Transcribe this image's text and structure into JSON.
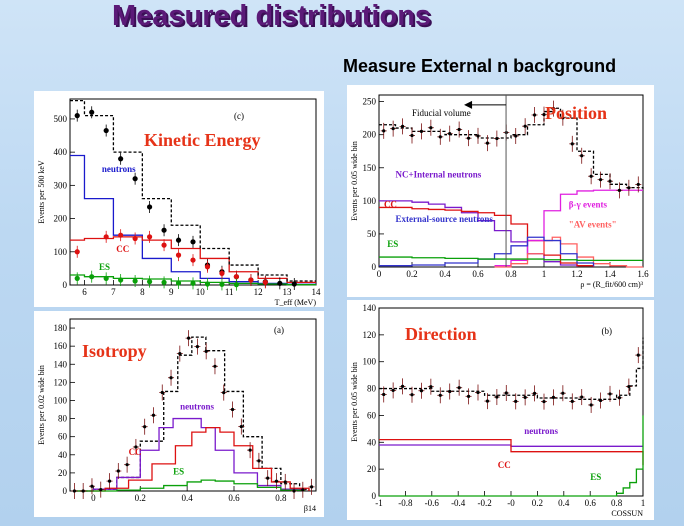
{
  "slide": {
    "title": "Measured distributions",
    "subtitle": "Measure External n background"
  },
  "chart_data": [
    {
      "id": "kinetic",
      "type": "histogram",
      "title": "Kinetic Energy",
      "panel_label": "(c)",
      "xlabel": "T_eff (MeV)",
      "ylabel": "Events per 500 keV",
      "xlim": [
        5.5,
        14
      ],
      "ylim": [
        0,
        560
      ],
      "xticks": [
        6,
        7,
        8,
        9,
        10,
        11,
        12,
        13,
        14
      ],
      "yticks": [
        0,
        100,
        200,
        300,
        400,
        500
      ],
      "colors": {
        "data": "#000000",
        "total": "#000000",
        "neutrons": "#1a1acc",
        "CC": "#dd1111",
        "ES": "#0aa00a",
        "title": "#e63318"
      },
      "series": [
        {
          "name": "neutrons",
          "color": "#1a1acc",
          "bins": [
            5.5,
            6,
            7,
            8,
            9,
            10,
            11,
            12,
            13,
            14
          ],
          "values": [
            390,
            260,
            150,
            80,
            40,
            20,
            10,
            5,
            2
          ]
        },
        {
          "name": "CC",
          "color": "#dd1111",
          "bins": [
            5.5,
            6,
            7,
            8,
            9,
            10,
            11,
            12,
            13,
            14
          ],
          "values": [
            135,
            140,
            145,
            135,
            110,
            80,
            40,
            20,
            8
          ]
        },
        {
          "name": "ES",
          "color": "#0aa00a",
          "bins": [
            5.5,
            6,
            7,
            8,
            9,
            10,
            11,
            12,
            13,
            14
          ],
          "values": [
            30,
            25,
            20,
            18,
            12,
            8,
            5,
            3,
            1
          ]
        },
        {
          "name": "total",
          "color": "#000000",
          "bins": [
            5.5,
            6,
            7,
            8,
            9,
            10,
            11,
            12,
            13,
            14
          ],
          "values": [
            555,
            510,
            400,
            260,
            180,
            110,
            60,
            30,
            12
          ]
        }
      ],
      "data_black": {
        "x": [
          5.75,
          6.25,
          6.75,
          7.25,
          7.75,
          8.25,
          8.75,
          9.25,
          9.75,
          10.25,
          10.75,
          11.25,
          11.75,
          12.25,
          12.75,
          13.25
        ],
        "y": [
          510,
          520,
          465,
          380,
          320,
          235,
          165,
          135,
          130,
          60,
          40,
          25,
          15,
          10,
          5,
          3
        ]
      },
      "data_red": {
        "x": [
          5.75,
          6.75,
          7.25,
          7.75,
          8.25,
          8.75,
          9.25,
          9.75,
          10.25,
          10.75,
          11.25,
          11.75,
          12.25
        ],
        "y": [
          100,
          145,
          150,
          140,
          145,
          120,
          90,
          75,
          55,
          35,
          25,
          15,
          8
        ]
      },
      "data_green": {
        "x": [
          5.75,
          6.25,
          6.75,
          7.25,
          7.75,
          8.25,
          8.75,
          9.25,
          9.75,
          10.25,
          10.75,
          11.25
        ],
        "y": [
          20,
          25,
          20,
          15,
          12,
          10,
          8,
          6,
          5,
          3,
          2,
          1
        ]
      },
      "annotations": [
        {
          "text": "neutrons",
          "color": "#1a1acc",
          "x": 6.6,
          "y": 340
        },
        {
          "text": "CC",
          "color": "#dd1111",
          "x": 7.1,
          "y": 100
        },
        {
          "text": "ES",
          "color": "#0aa00a",
          "x": 6.5,
          "y": 45
        }
      ]
    },
    {
      "id": "isotropy",
      "type": "histogram",
      "title": "Isotropy",
      "panel_label": "(a)",
      "xlabel": "β14",
      "ylabel": "Events per 0.02 wide bin",
      "xlim": [
        -0.1,
        0.95
      ],
      "ylim": [
        0,
        190
      ],
      "xticks": [
        0,
        0.2,
        0.4,
        0.6,
        0.8
      ],
      "yticks": [
        0,
        20,
        40,
        60,
        80,
        100,
        120,
        140,
        160,
        180
      ],
      "colors": {
        "data": "#000000",
        "total": "#000000",
        "neutrons": "#7a1acc",
        "CC": "#dd1111",
        "ES": "#0aa00a",
        "title": "#e63318"
      },
      "series": [
        {
          "name": "total",
          "color": "#000000",
          "x": [
            -0.08,
            0,
            0.1,
            0.2,
            0.3,
            0.36,
            0.42,
            0.48,
            0.56,
            0.64,
            0.72,
            0.8,
            0.88,
            0.92
          ],
          "values": [
            0,
            2,
            15,
            55,
            110,
            150,
            170,
            155,
            110,
            60,
            25,
            8,
            2,
            0
          ]
        },
        {
          "name": "neutrons",
          "color": "#7a1acc",
          "x": [
            -0.08,
            0,
            0.1,
            0.2,
            0.28,
            0.34,
            0.4,
            0.46,
            0.52,
            0.6,
            0.7,
            0.8,
            0.9
          ],
          "values": [
            0,
            2,
            15,
            45,
            70,
            80,
            80,
            70,
            45,
            20,
            6,
            2,
            0
          ]
        },
        {
          "name": "CC",
          "color": "#dd1111",
          "x": [
            -0.08,
            0.05,
            0.15,
            0.25,
            0.35,
            0.42,
            0.48,
            0.54,
            0.6,
            0.68,
            0.76,
            0.84,
            0.92
          ],
          "values": [
            0,
            3,
            12,
            30,
            50,
            65,
            70,
            65,
            50,
            25,
            10,
            3,
            0
          ]
        },
        {
          "name": "ES",
          "color": "#0aa00a",
          "x": [
            -0.08,
            0.1,
            0.2,
            0.3,
            0.4,
            0.46,
            0.52,
            0.6,
            0.7,
            0.8,
            0.9
          ],
          "values": [
            0,
            1,
            3,
            6,
            10,
            12,
            11,
            8,
            4,
            1,
            0
          ]
        }
      ],
      "annotations": [
        {
          "text": "neutrons",
          "color": "#7a1acc",
          "x": 0.37,
          "y": 90
        },
        {
          "text": "CC",
          "color": "#dd1111",
          "x": 0.15,
          "y": 40
        },
        {
          "text": "ES",
          "color": "#0aa00a",
          "x": 0.34,
          "y": 18
        }
      ]
    },
    {
      "id": "position",
      "type": "histogram",
      "title": "Position",
      "panel_label": "",
      "xlabel": "ρ = (R_fit/600 cm)³",
      "ylabel": "Events per 0.05 wide bin",
      "xlim": [
        0,
        1.6
      ],
      "ylim": [
        0,
        260
      ],
      "xticks": [
        0,
        0.2,
        0.4,
        0.6,
        0.8,
        1,
        1.2,
        1.4,
        1.6
      ],
      "yticks": [
        0,
        50,
        100,
        150,
        200,
        250
      ],
      "colors": {
        "data": "#000000",
        "total": "#000000",
        "neutrons": "#7a1acc",
        "CC": "#dd1111",
        "ES": "#0aa00a",
        "betagamma": "#e020e0",
        "AV": "#ff6060",
        "external": "#3333cc",
        "title": "#e63318"
      },
      "series": [
        {
          "name": "total",
          "color": "#000000",
          "x": [
            0,
            0.1,
            0.2,
            0.3,
            0.4,
            0.5,
            0.6,
            0.7,
            0.8,
            0.9,
            1.0,
            1.05,
            1.1,
            1.2,
            1.3,
            1.4,
            1.5,
            1.6
          ],
          "values": [
            215,
            210,
            205,
            205,
            200,
            200,
            195,
            195,
            200,
            215,
            235,
            240,
            225,
            175,
            140,
            125,
            120,
            118
          ]
        },
        {
          "name": "NC+internal neutrons",
          "color": "#7a1acc",
          "x": [
            0,
            0.1,
            0.2,
            0.3,
            0.4,
            0.5,
            0.6,
            0.7,
            0.8,
            0.9,
            1.0,
            1.1,
            1.2
          ],
          "values": [
            100,
            100,
            98,
            95,
            90,
            82,
            70,
            55,
            38,
            20,
            8,
            3,
            0
          ]
        },
        {
          "name": "CC",
          "color": "#dd1111",
          "x": [
            0,
            0.1,
            0.2,
            0.3,
            0.4,
            0.5,
            0.6,
            0.7,
            0.8,
            0.9,
            1.0,
            1.1,
            1.2,
            1.3
          ],
          "values": [
            90,
            90,
            88,
            87,
            86,
            84,
            82,
            78,
            65,
            40,
            18,
            6,
            2,
            0
          ]
        },
        {
          "name": "β-γ events",
          "color": "#e020e0",
          "x": [
            0.7,
            0.8,
            0.9,
            1.0,
            1.1,
            1.2,
            1.3,
            1.4,
            1.5,
            1.6
          ],
          "values": [
            2,
            10,
            40,
            85,
            110,
            115,
            116,
            116,
            116,
            116
          ]
        },
        {
          "name": "AV events",
          "color": "#ff6060",
          "x": [
            0.7,
            0.8,
            0.9,
            1.0,
            1.05,
            1.1,
            1.2,
            1.3,
            1.4,
            1.5,
            1.6
          ],
          "values": [
            0,
            5,
            20,
            40,
            45,
            35,
            15,
            5,
            2,
            0,
            0
          ]
        },
        {
          "name": "External-source neutrons",
          "color": "#3333cc",
          "x": [
            0,
            0.2,
            0.4,
            0.6,
            0.7,
            0.8,
            0.9,
            1.0,
            1.1,
            1.2,
            1.3
          ],
          "values": [
            2,
            3,
            6,
            12,
            20,
            32,
            45,
            40,
            20,
            6,
            1
          ]
        },
        {
          "name": "ES",
          "color": "#0aa00a",
          "x": [
            0,
            0.2,
            0.4,
            0.6,
            0.8,
            1.0,
            1.2,
            1.4,
            1.6
          ],
          "values": [
            15,
            14,
            13,
            12,
            12,
            11,
            10,
            10,
            10
          ]
        }
      ],
      "fiducial_line_x": 0.77,
      "annotations": [
        {
          "text": "Fiducial volume",
          "x": 0.2,
          "y": 228
        },
        {
          "text": "NC+Internal neutrons",
          "color": "#7a1acc",
          "x": 0.1,
          "y": 135
        },
        {
          "text": "CC",
          "color": "#dd1111",
          "x": 0.03,
          "y": 90
        },
        {
          "text": "External-source neutrons",
          "color": "#3333cc",
          "x": 0.1,
          "y": 68
        },
        {
          "text": "ES",
          "color": "#0aa00a",
          "x": 0.05,
          "y": 30
        },
        {
          "text": "β-γ events",
          "color": "#e020e0",
          "x": 1.15,
          "y": 90
        },
        {
          "text": "\"AV events\"",
          "color": "#ff6060",
          "x": 1.15,
          "y": 60
        }
      ]
    },
    {
      "id": "direction",
      "type": "histogram",
      "title": "Direction",
      "panel_label": "(b)",
      "xlabel": "COSSUN",
      "ylabel": "Events per 0.05 wide bin",
      "xlim": [
        -1,
        1
      ],
      "ylim": [
        0,
        140
      ],
      "xticks": [
        -1,
        -0.8,
        -0.6,
        -0.4,
        -0.2,
        0,
        0.2,
        0.4,
        0.6,
        0.8,
        1
      ],
      "xtick_labels": [
        "-1",
        "-0.8",
        "-0.6",
        "-0.4",
        "-0.2",
        "-0",
        "0.2",
        "0.4",
        "0.6",
        "0.8",
        "1"
      ],
      "yticks": [
        0,
        20,
        40,
        60,
        80,
        100,
        120,
        140
      ],
      "colors": {
        "data": "#000000",
        "total": "#000000",
        "neutrons": "#7a1acc",
        "CC": "#dd1111",
        "ES": "#0aa00a",
        "title": "#e63318"
      },
      "series": [
        {
          "name": "total",
          "color": "#000000",
          "x": [
            -1,
            -0.6,
            -0.2,
            0.2,
            0.5,
            0.7,
            0.8,
            0.9,
            0.95,
            1.0
          ],
          "values": [
            80,
            78,
            75,
            73,
            72,
            72,
            75,
            82,
            95,
            118
          ]
        },
        {
          "name": "neutrons",
          "color": "#7a1acc",
          "x": [
            -1,
            0,
            1
          ],
          "values": [
            38,
            37,
            37
          ]
        },
        {
          "name": "CC",
          "color": "#dd1111",
          "x": [
            -1,
            0,
            1
          ],
          "values": [
            42,
            33,
            23
          ]
        },
        {
          "name": "ES",
          "color": "#0aa00a",
          "x": [
            -1,
            0,
            0.6,
            0.8,
            0.85,
            0.9,
            0.95,
            1.0
          ],
          "values": [
            0,
            0,
            0,
            2,
            6,
            10,
            20,
            60
          ]
        }
      ],
      "annotations": [
        {
          "text": "neutrons",
          "color": "#7a1acc",
          "x": 0.1,
          "y": 46
        },
        {
          "text": "CC",
          "color": "#dd1111",
          "x": -0.1,
          "y": 21
        },
        {
          "text": "ES",
          "color": "#0aa00a",
          "x": 0.6,
          "y": 12
        }
      ]
    }
  ]
}
